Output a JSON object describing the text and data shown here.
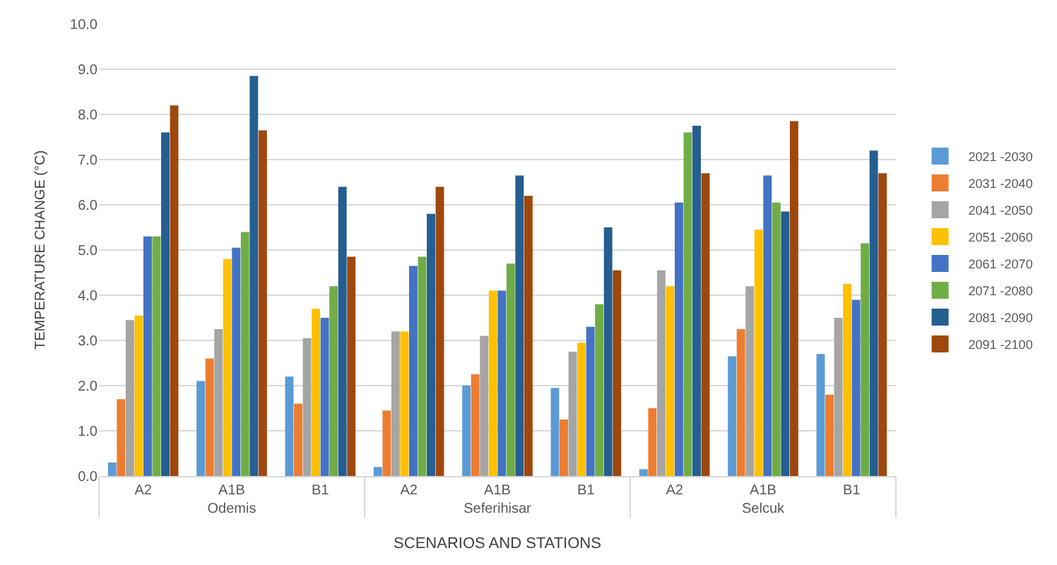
{
  "chart_data": {
    "type": "bar",
    "xlabel": "SCENARIOS AND STATIONS",
    "ylabel": "TEMPERATURE CHANGE (°C)",
    "categories": [
      "A2",
      "A1B",
      "B1",
      "A2",
      "A1B",
      "B1",
      "A2",
      "A1B",
      "B1"
    ],
    "annotations": [
      "Odemis",
      "Seferihisar",
      "Selcuk"
    ],
    "series": [
      {
        "name": "2021 -2030",
        "color": "#5b9bd5",
        "values": [
          0.3,
          2.1,
          2.2,
          0.2,
          2.0,
          1.95,
          0.15,
          2.65,
          2.7
        ]
      },
      {
        "name": "2031 -2040",
        "color": "#ed7d31",
        "values": [
          1.7,
          2.6,
          1.6,
          1.45,
          2.25,
          1.25,
          1.5,
          3.25,
          1.8
        ]
      },
      {
        "name": "2041 -2050",
        "color": "#a5a5a5",
        "values": [
          3.45,
          3.25,
          3.05,
          3.2,
          3.1,
          2.75,
          4.55,
          4.2,
          3.5
        ]
      },
      {
        "name": "2051 -2060",
        "color": "#ffc000",
        "values": [
          3.55,
          4.8,
          3.7,
          3.2,
          4.1,
          2.95,
          4.2,
          5.45,
          4.25
        ]
      },
      {
        "name": "2061 -2070",
        "color": "#4472c4",
        "values": [
          5.3,
          5.05,
          3.5,
          4.65,
          4.1,
          3.3,
          6.05,
          6.65,
          3.9
        ]
      },
      {
        "name": "2071 -2080",
        "color": "#70ad47",
        "values": [
          5.3,
          5.4,
          4.2,
          4.85,
          4.7,
          3.8,
          7.6,
          6.05,
          5.15
        ]
      },
      {
        "name": "2081 -2090",
        "color": "#255e91",
        "values": [
          7.6,
          8.85,
          6.4,
          5.8,
          6.65,
          5.5,
          7.75,
          5.85,
          7.2
        ]
      },
      {
        "name": "2091 -2100",
        "color": "#9e480e",
        "values": [
          8.2,
          7.65,
          4.85,
          6.4,
          6.2,
          4.55,
          6.7,
          7.85,
          6.7
        ]
      }
    ],
    "ylim": [
      0,
      10
    ],
    "yticks": [
      {
        "value": 0,
        "label": "0.0"
      },
      {
        "value": 1,
        "label": "1.0"
      },
      {
        "value": 2,
        "label": "2.0"
      },
      {
        "value": 3,
        "label": "3.0"
      },
      {
        "value": 4,
        "label": "4.0"
      },
      {
        "value": 5,
        "label": "5.0"
      },
      {
        "value": 6,
        "label": "6.0"
      },
      {
        "value": 7,
        "label": "7.0"
      },
      {
        "value": 8,
        "label": "8.0"
      },
      {
        "value": 9,
        "label": "9.0"
      },
      {
        "value": 10,
        "label": "10.0"
      }
    ],
    "grid": "y",
    "legend": "right"
  }
}
